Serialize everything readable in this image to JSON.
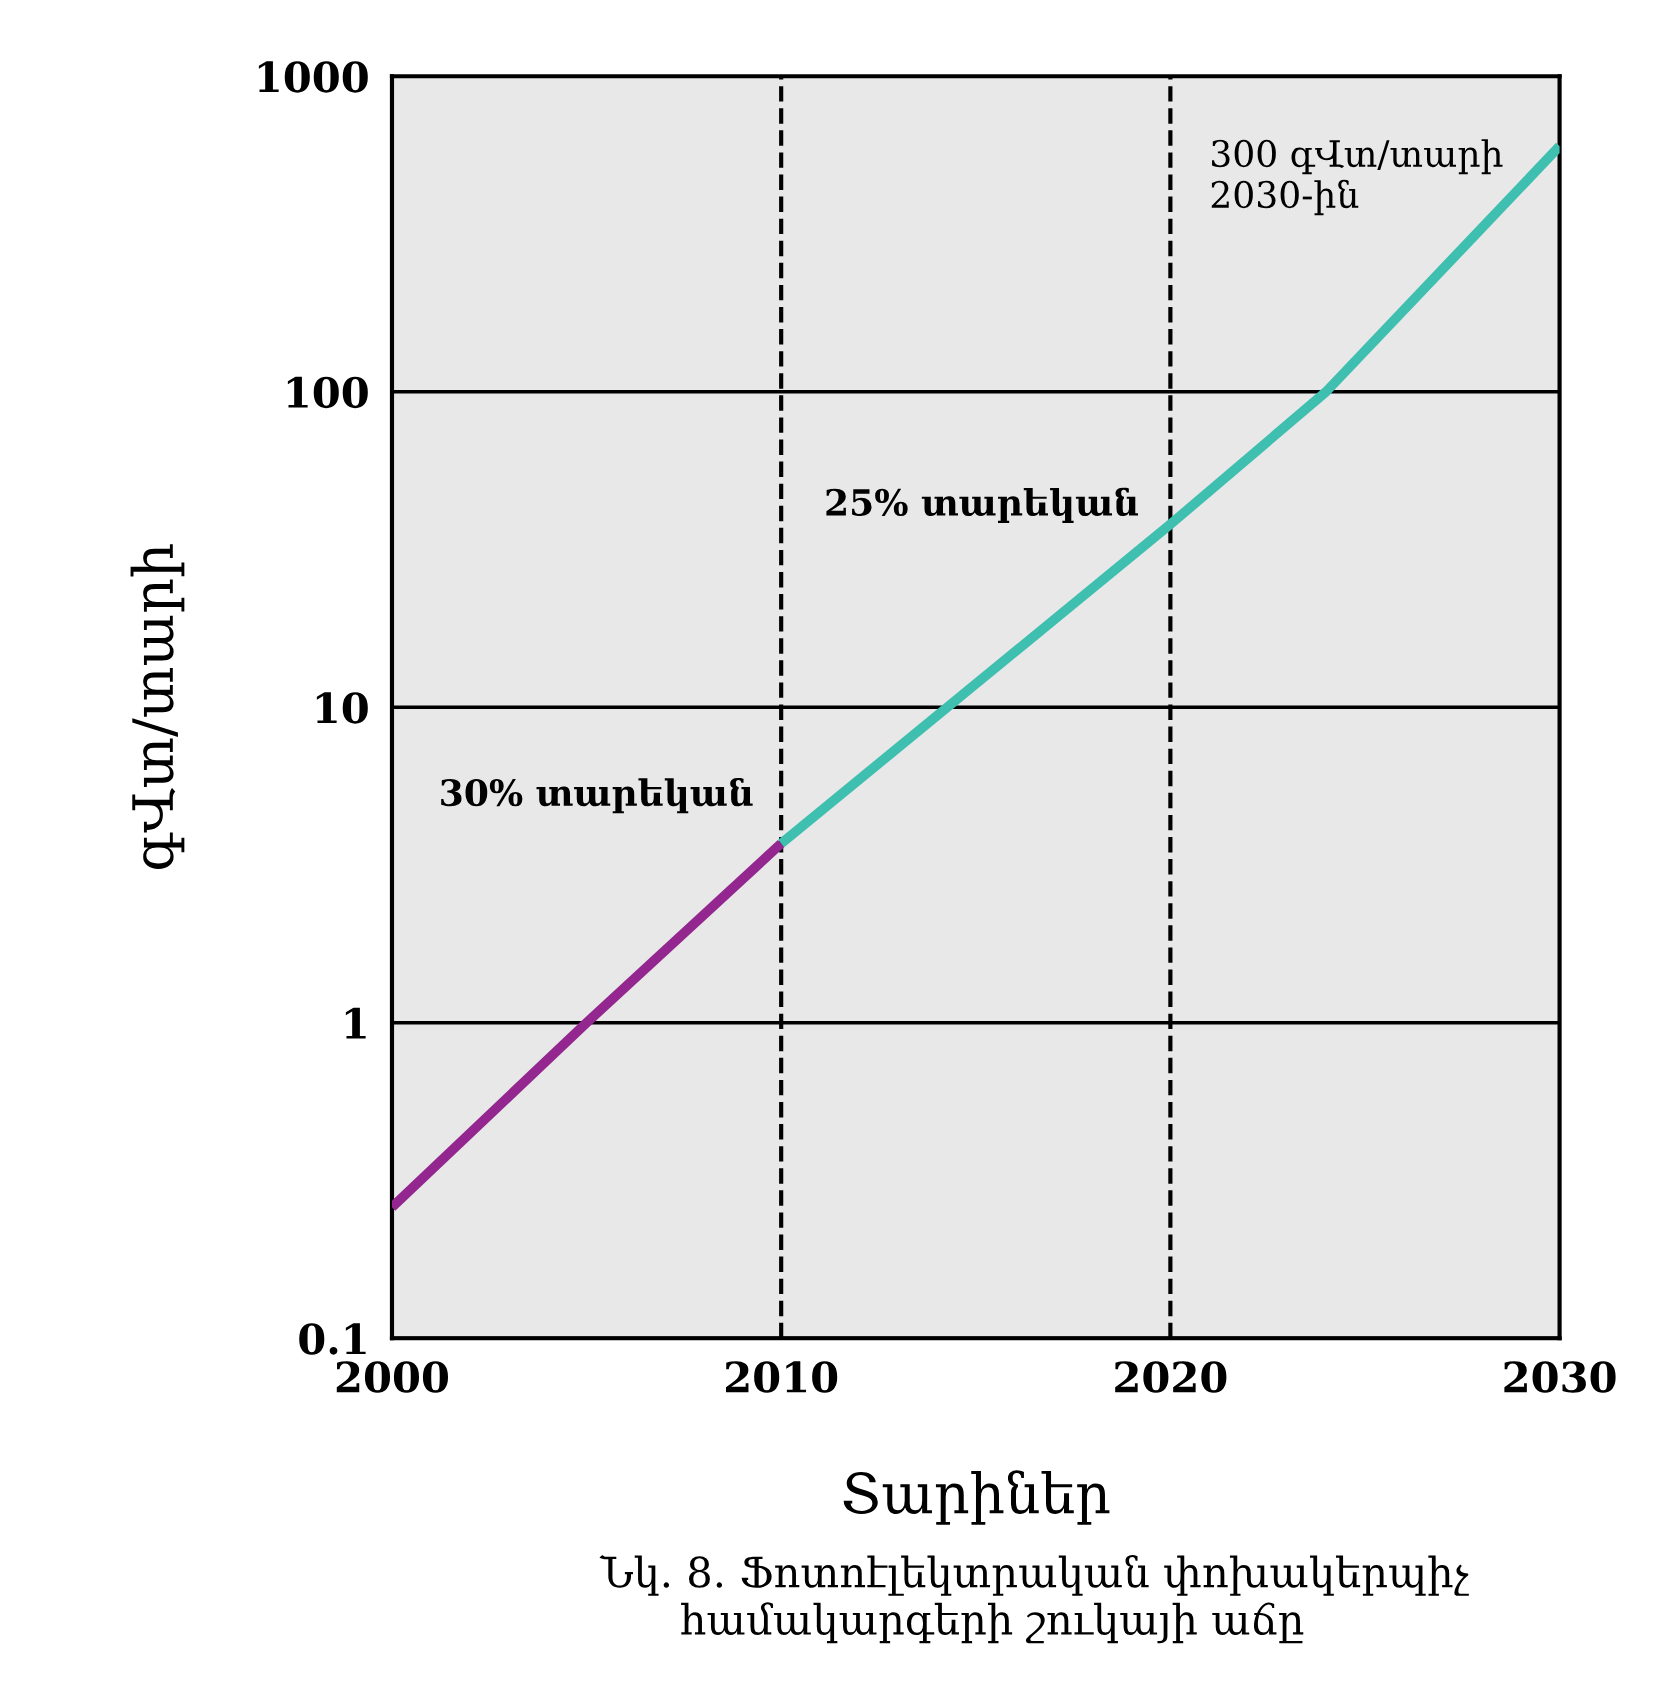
{
  "chart_data": {
    "type": "line",
    "xlabel": "Տարիներ",
    "ylabel": "գՎտ/տարի",
    "series": [
      {
        "color": "#93278f",
        "x": [
          2000,
          2005,
          2010
        ],
        "values": [
          0.26,
          1,
          3.7
        ]
      },
      {
        "color": "#3fbfb0",
        "x": [
          2010,
          2020,
          2024,
          2030
        ],
        "values": [
          3.7,
          38,
          100,
          600
        ]
      }
    ],
    "log": true,
    "xlim": [
      2000,
      2030
    ],
    "xticks": [
      2000,
      2010,
      2020,
      2030
    ],
    "ylim": [
      0.1,
      1000
    ],
    "yticks": [
      0.1,
      1,
      10,
      100,
      1000
    ],
    "grid": "y",
    "ref_lines": [
      {
        "axis": "x",
        "value": 2010,
        "color": "#000000",
        "line_style": "dashed"
      },
      {
        "axis": "x",
        "value": 2020,
        "color": "#000000",
        "line_style": "dashed"
      }
    ],
    "annotations": [
      "30% տարեկան",
      "25% տարեկան",
      "300 գՎտ/տարի\n2030-ին",
      "Նկ. 8. Ֆոտոէլեկտրական փոխակերպիչ\n      համակարգերի շուկայի աճը"
    ]
  }
}
